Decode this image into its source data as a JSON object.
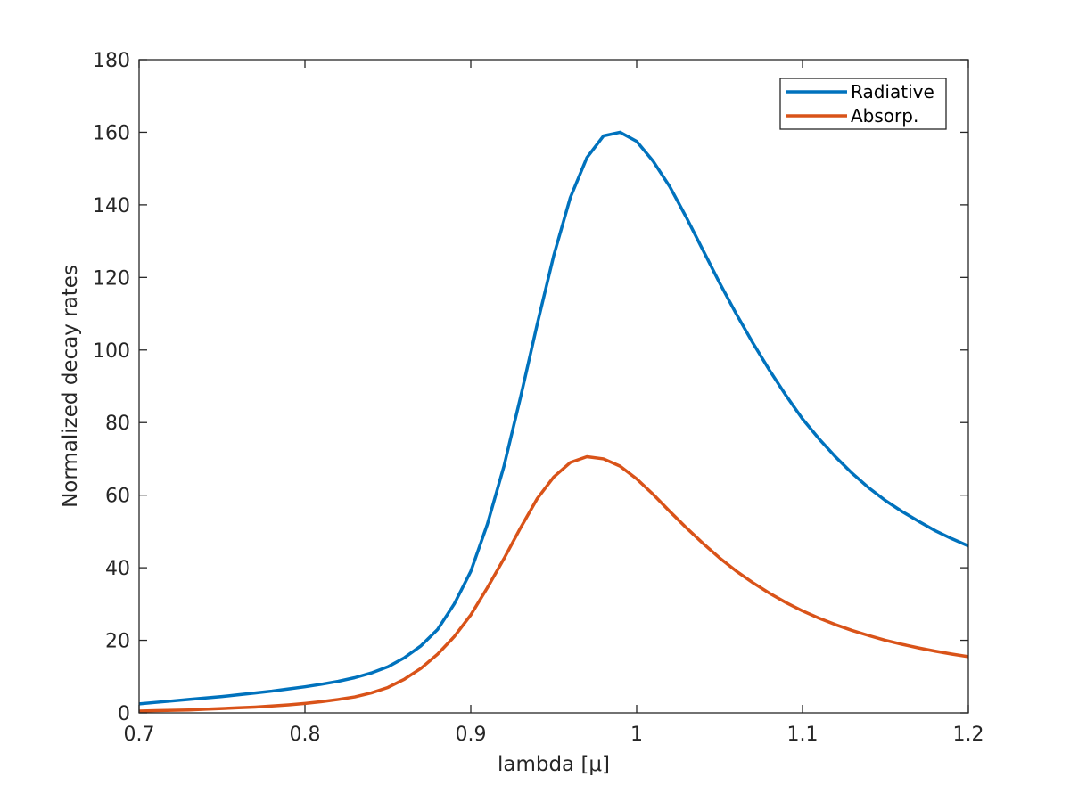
{
  "chart_data": {
    "type": "line",
    "title": "",
    "xlabel": "lambda [μ]",
    "ylabel": "Normalized decay rates",
    "xlim": [
      0.7,
      1.2
    ],
    "ylim": [
      0,
      180
    ],
    "xticks": [
      0.7,
      0.8,
      0.9,
      1.0,
      1.1,
      1.2
    ],
    "xtick_labels": [
      "0.7",
      "0.8",
      "0.9",
      "1",
      "1.1",
      "1.2"
    ],
    "yticks": [
      0,
      20,
      40,
      60,
      80,
      100,
      120,
      140,
      160,
      180
    ],
    "ytick_labels": [
      "0",
      "20",
      "40",
      "60",
      "80",
      "100",
      "120",
      "140",
      "160",
      "180"
    ],
    "grid": false,
    "legend_position": "top-right",
    "x": [
      0.7,
      0.71,
      0.72,
      0.73,
      0.74,
      0.75,
      0.76,
      0.77,
      0.78,
      0.79,
      0.8,
      0.81,
      0.82,
      0.83,
      0.84,
      0.85,
      0.86,
      0.87,
      0.88,
      0.89,
      0.9,
      0.91,
      0.92,
      0.93,
      0.94,
      0.95,
      0.96,
      0.97,
      0.98,
      0.99,
      1.0,
      1.01,
      1.02,
      1.03,
      1.04,
      1.05,
      1.06,
      1.07,
      1.08,
      1.09,
      1.1,
      1.11,
      1.12,
      1.13,
      1.14,
      1.15,
      1.16,
      1.17,
      1.18,
      1.19,
      1.2
    ],
    "series": [
      {
        "name": "Radiative",
        "color": "#0072BD",
        "values": [
          2.5,
          2.9,
          3.3,
          3.7,
          4.1,
          4.5,
          5.0,
          5.5,
          6.0,
          6.6,
          7.2,
          7.9,
          8.7,
          9.7,
          11.0,
          12.7,
          15.2,
          18.5,
          23.0,
          30.0,
          39.0,
          52.0,
          68.0,
          87.0,
          107.0,
          126.0,
          142.0,
          153.0,
          159.0,
          160.0,
          157.5,
          152.0,
          145.0,
          136.5,
          127.5,
          118.5,
          110.0,
          102.0,
          94.5,
          87.5,
          81.0,
          75.5,
          70.5,
          66.0,
          62.0,
          58.5,
          55.5,
          52.8,
          50.2,
          48.0,
          46.0
        ]
      },
      {
        "name": "Absorp.",
        "color": "#D95319",
        "values": [
          0.5,
          0.6,
          0.7,
          0.8,
          1.0,
          1.2,
          1.4,
          1.6,
          1.9,
          2.2,
          2.6,
          3.1,
          3.7,
          4.4,
          5.5,
          7.0,
          9.3,
          12.3,
          16.2,
          21.0,
          27.0,
          34.5,
          42.5,
          51.0,
          59.0,
          65.0,
          69.0,
          70.6,
          70.0,
          68.0,
          64.5,
          60.2,
          55.5,
          51.0,
          46.7,
          42.7,
          39.1,
          35.9,
          33.0,
          30.4,
          28.1,
          26.1,
          24.3,
          22.7,
          21.3,
          20.0,
          18.9,
          17.9,
          17.0,
          16.2,
          15.5
        ]
      }
    ]
  }
}
